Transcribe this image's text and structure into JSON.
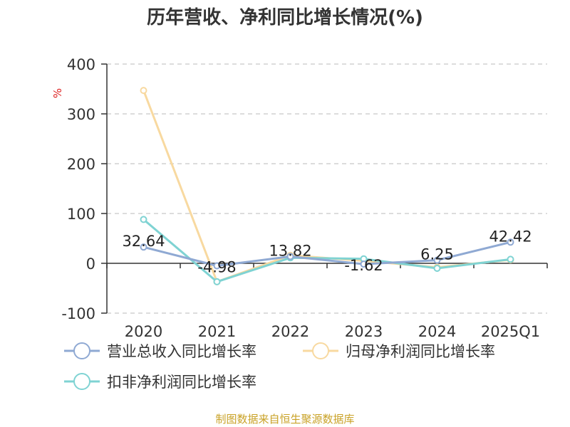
{
  "chart_data": {
    "type": "line",
    "title": "历年营收、净利同比增长情况(%)",
    "ylabel": "%",
    "categories": [
      "2020",
      "2021",
      "2022",
      "2023",
      "2024",
      "2025Q1"
    ],
    "ylim": [
      -100,
      400
    ],
    "yticks": [
      400,
      300,
      200,
      100,
      0,
      -100
    ],
    "grid": true,
    "legend_position": "bottom",
    "series": [
      {
        "name": "营业总收入同比增长率",
        "color": "#8fa9d3",
        "values": [
          32.64,
          -4.98,
          13.82,
          -1.62,
          6.25,
          42.42
        ],
        "labels": [
          "32.64",
          "-4.98",
          "13.82",
          "-1.62",
          "6.25",
          "42.42"
        ]
      },
      {
        "name": "归母净利润同比增长率",
        "color": "#f8d9a0",
        "values": [
          347,
          -37,
          16,
          5,
          -8,
          7
        ]
      },
      {
        "name": "扣非净利润同比增长率",
        "color": "#7fd3d3",
        "values": [
          88,
          -37,
          11,
          9,
          -10,
          8
        ]
      }
    ]
  },
  "source": "制图数据来自恒生聚源数据库"
}
